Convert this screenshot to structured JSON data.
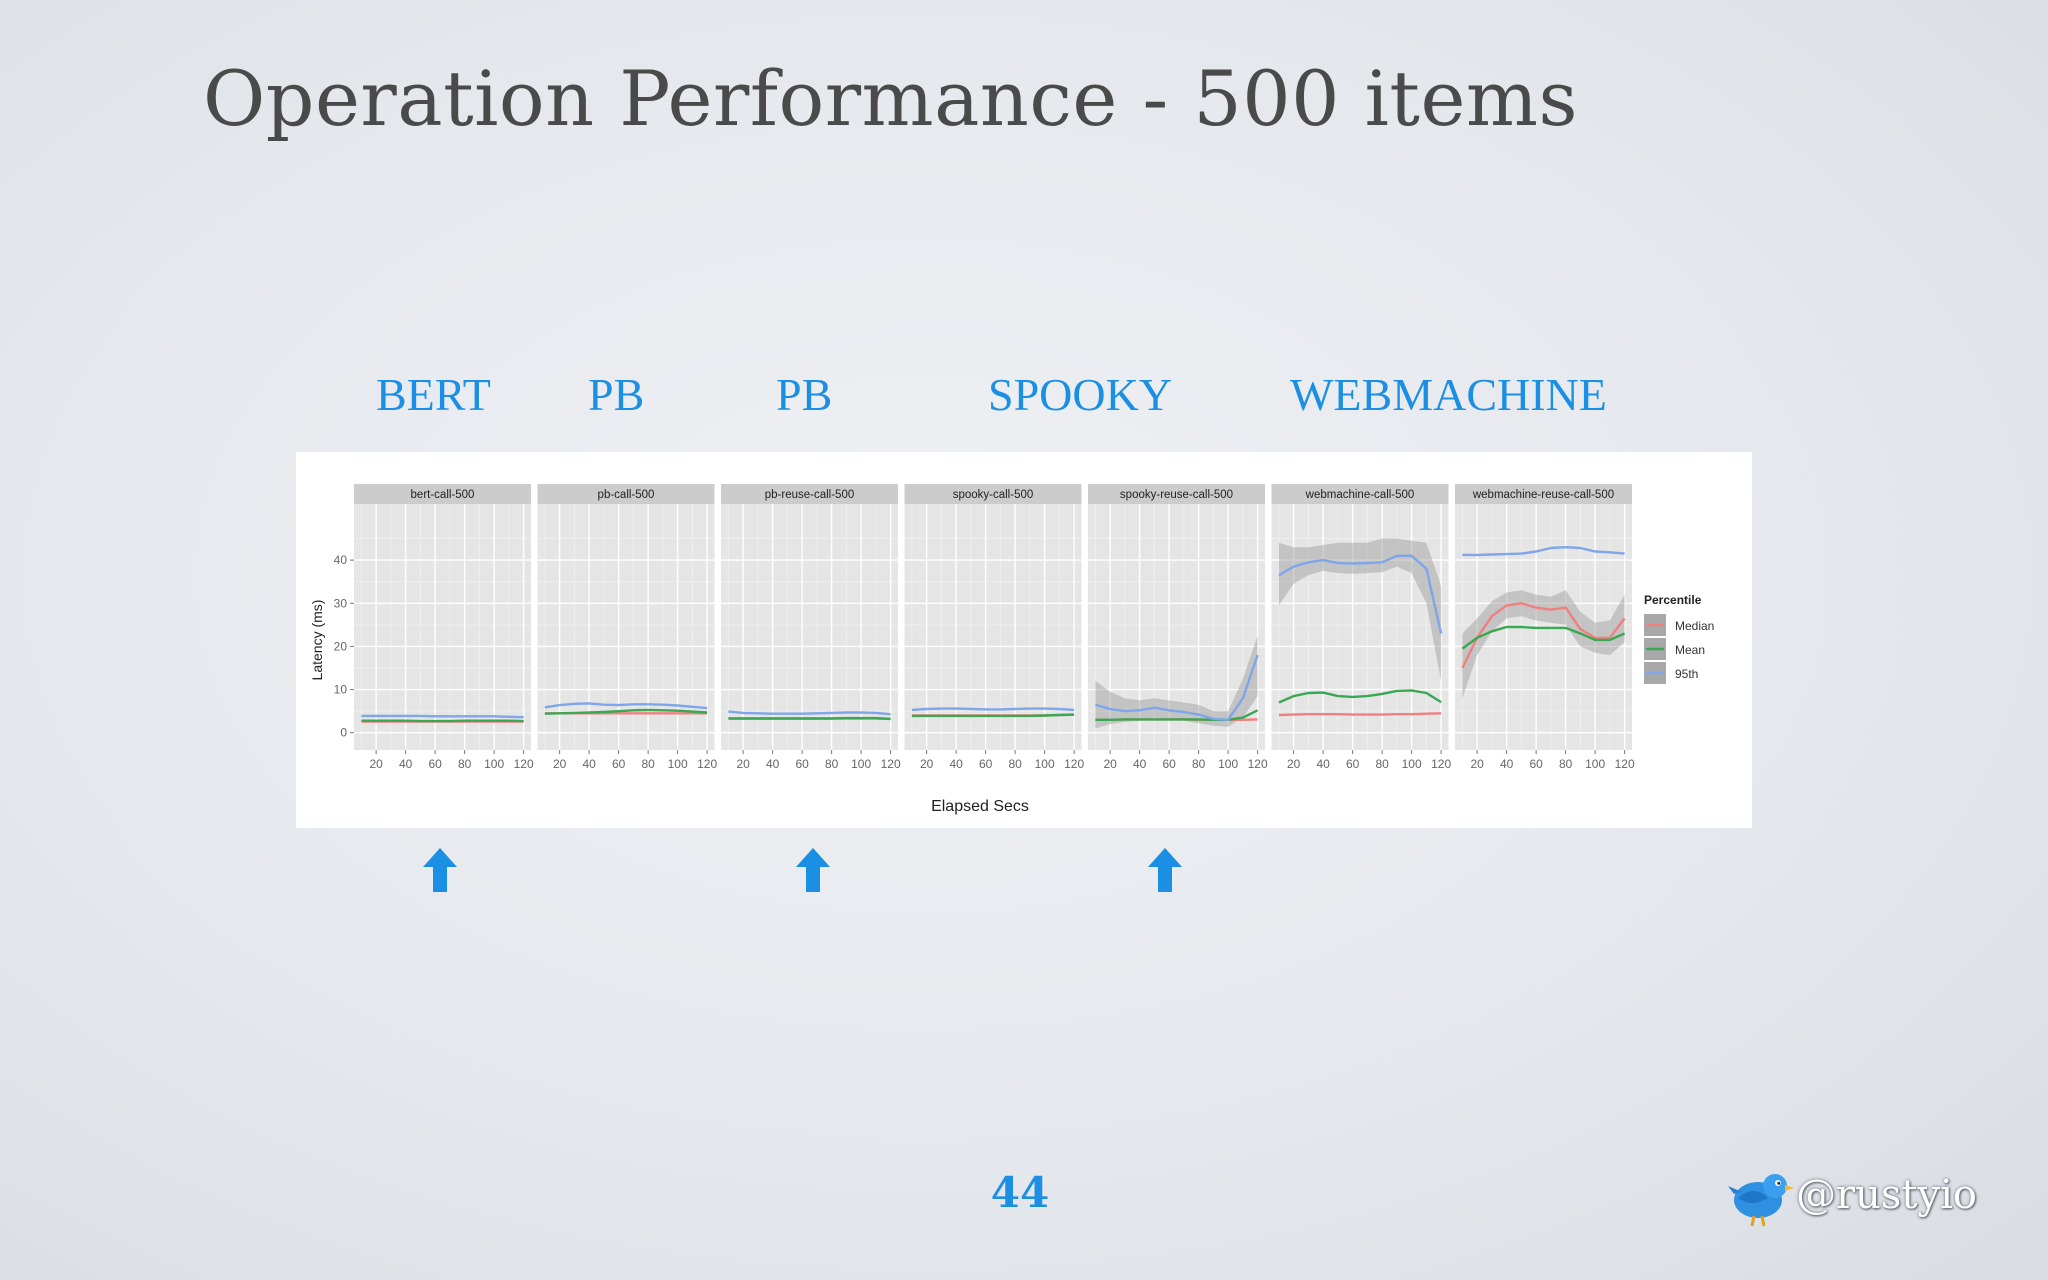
{
  "slide": {
    "title": "Operation Performance - 500 items",
    "categories": [
      "BERT",
      "PB",
      "PB",
      "SPOOKY",
      "WEBMACHINE"
    ],
    "page_number": "44",
    "twitter_handle": "@rustyio",
    "accent_color": "#1a8fe3"
  },
  "chart_data": {
    "type": "line",
    "xlabel": "Elapsed Secs",
    "ylabel": "Latency (ms)",
    "x_ticks": [
      20,
      40,
      60,
      80,
      100,
      120
    ],
    "y_ticks": [
      0,
      10,
      20,
      30,
      40
    ],
    "xlim": [
      5,
      125
    ],
    "ylim": [
      -4,
      53
    ],
    "grid": true,
    "legend": {
      "title": "Percentile",
      "position": "right",
      "entries": [
        {
          "label": "Median",
          "color": "#f08080"
        },
        {
          "label": "Mean",
          "color": "#3aa852"
        },
        {
          "label": "95th",
          "color": "#7ea6e8"
        }
      ]
    },
    "x": [
      10,
      20,
      30,
      40,
      50,
      60,
      70,
      80,
      90,
      100,
      110,
      120
    ],
    "panels": [
      {
        "name": "bert-call-500",
        "series": [
          {
            "name": "Median",
            "values": [
              2.6,
              2.6,
              2.6,
              2.6,
              2.6,
              2.6,
              2.6,
              2.6,
              2.6,
              2.6,
              2.6,
              2.6
            ]
          },
          {
            "name": "Mean",
            "values": [
              2.8,
              2.8,
              2.8,
              2.8,
              2.7,
              2.7,
              2.7,
              2.8,
              2.8,
              2.8,
              2.8,
              2.7
            ]
          },
          {
            "name": "95th",
            "values": [
              3.9,
              3.9,
              3.9,
              3.9,
              3.9,
              3.8,
              3.8,
              3.8,
              3.8,
              3.8,
              3.7,
              3.6
            ]
          }
        ],
        "band": null
      },
      {
        "name": "pb-call-500",
        "series": [
          {
            "name": "Median",
            "values": [
              4.5,
              4.5,
              4.5,
              4.5,
              4.5,
              4.5,
              4.5,
              4.5,
              4.5,
              4.5,
              4.5,
              4.5
            ]
          },
          {
            "name": "Mean",
            "values": [
              4.4,
              4.5,
              4.6,
              4.7,
              4.8,
              5.0,
              5.2,
              5.3,
              5.2,
              5.1,
              4.9,
              4.7
            ]
          },
          {
            "name": "95th",
            "values": [
              5.9,
              6.4,
              6.7,
              6.8,
              6.5,
              6.4,
              6.6,
              6.6,
              6.5,
              6.3,
              6.0,
              5.7
            ]
          }
        ],
        "band": null
      },
      {
        "name": "pb-reuse-call-500",
        "series": [
          {
            "name": "Median",
            "values": [
              3.3,
              3.3,
              3.3,
              3.3,
              3.3,
              3.3,
              3.3,
              3.3,
              3.3,
              3.3,
              3.3,
              3.2
            ]
          },
          {
            "name": "Mean",
            "values": [
              3.3,
              3.3,
              3.3,
              3.3,
              3.3,
              3.3,
              3.3,
              3.3,
              3.4,
              3.4,
              3.4,
              3.2
            ]
          },
          {
            "name": "95th",
            "values": [
              4.9,
              4.6,
              4.5,
              4.4,
              4.4,
              4.4,
              4.5,
              4.6,
              4.7,
              4.7,
              4.6,
              4.3
            ]
          }
        ],
        "band": null
      },
      {
        "name": "spooky-call-500",
        "series": [
          {
            "name": "Median",
            "values": [
              4.0,
              4.0,
              4.0,
              4.0,
              4.0,
              4.0,
              4.0,
              4.0,
              4.0,
              4.0,
              4.1,
              4.2
            ]
          },
          {
            "name": "Mean",
            "values": [
              3.9,
              3.9,
              3.9,
              3.9,
              3.9,
              3.9,
              3.9,
              3.9,
              3.9,
              4.0,
              4.1,
              4.2
            ]
          },
          {
            "name": "95th",
            "values": [
              5.3,
              5.5,
              5.6,
              5.6,
              5.5,
              5.4,
              5.4,
              5.5,
              5.6,
              5.6,
              5.5,
              5.3
            ]
          }
        ],
        "band": null
      },
      {
        "name": "spooky-reuse-call-500",
        "series": [
          {
            "name": "Median",
            "values": [
              3.0,
              3.0,
              3.1,
              3.1,
              3.1,
              3.1,
              3.1,
              3.0,
              3.0,
              3.0,
              3.0,
              3.1
            ]
          },
          {
            "name": "Mean",
            "values": [
              3.0,
              3.0,
              3.1,
              3.1,
              3.1,
              3.1,
              3.1,
              3.1,
              3.0,
              3.0,
              3.5,
              5.2
            ]
          },
          {
            "name": "95th",
            "values": [
              6.5,
              5.5,
              5.0,
              5.2,
              5.8,
              5.2,
              4.8,
              4.2,
              3.2,
              3.0,
              8.0,
              18.0
            ]
          }
        ],
        "band": {
          "series": "95th",
          "lower": [
            1.0,
            2.0,
            2.5,
            2.8,
            3.5,
            3.0,
            2.8,
            2.2,
            1.6,
            1.4,
            3.5,
            8.5
          ],
          "upper": [
            12.0,
            9.5,
            8.0,
            7.5,
            8.0,
            7.5,
            7.0,
            6.5,
            5.0,
            5.0,
            12.5,
            22.5
          ]
        }
      },
      {
        "name": "webmachine-call-500",
        "series": [
          {
            "name": "Median",
            "values": [
              4.1,
              4.2,
              4.3,
              4.3,
              4.3,
              4.2,
              4.2,
              4.2,
              4.3,
              4.3,
              4.4,
              4.5
            ]
          },
          {
            "name": "Mean",
            "values": [
              7.0,
              8.5,
              9.2,
              9.3,
              8.5,
              8.3,
              8.5,
              9.0,
              9.7,
              9.8,
              9.2,
              7.1
            ]
          },
          {
            "name": "95th",
            "values": [
              36.5,
              38.5,
              39.5,
              40.0,
              39.3,
              39.2,
              39.3,
              39.5,
              41.0,
              41.0,
              38.0,
              23.0
            ]
          }
        ],
        "band": {
          "series": "95th",
          "lower": [
            29.5,
            34.5,
            36.5,
            37.5,
            37.0,
            36.8,
            37.0,
            37.2,
            38.5,
            37.0,
            30.0,
            12.0
          ],
          "upper": [
            44.0,
            43.0,
            43.0,
            43.5,
            44.0,
            44.0,
            44.0,
            45.0,
            45.0,
            44.5,
            44.0,
            34.0
          ]
        }
      },
      {
        "name": "webmachine-reuse-call-500",
        "series": [
          {
            "name": "Median",
            "values": [
              15.0,
              22.0,
              27.0,
              29.5,
              30.0,
              29.0,
              28.5,
              29.0,
              24.0,
              22.0,
              22.0,
              26.5
            ]
          },
          {
            "name": "Mean",
            "values": [
              19.5,
              22.0,
              23.5,
              24.5,
              24.5,
              24.3,
              24.3,
              24.3,
              23.0,
              21.5,
              21.5,
              23.0
            ]
          },
          {
            "name": "95th",
            "values": [
              41.2,
              41.2,
              41.3,
              41.4,
              41.5,
              42.0,
              42.8,
              43.0,
              42.8,
              42.0,
              41.8,
              41.5
            ]
          }
        ],
        "band": {
          "series": "Median",
          "lower": [
            8.0,
            18.0,
            23.5,
            26.5,
            27.0,
            26.0,
            25.5,
            25.0,
            20.0,
            18.5,
            18.0,
            21.0
          ],
          "upper": [
            23.0,
            26.5,
            30.5,
            32.5,
            33.0,
            32.0,
            31.5,
            33.0,
            28.0,
            25.5,
            26.0,
            32.0
          ]
        }
      }
    ]
  }
}
